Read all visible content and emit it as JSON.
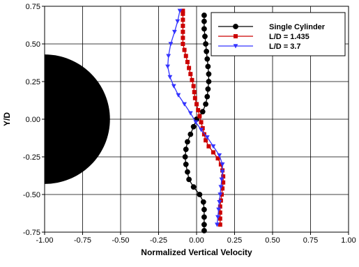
{
  "chart_data": {
    "type": "line",
    "title": "",
    "xlabel": "Normalized Vertical Velocity",
    "ylabel": "Y/D",
    "xlim": [
      -1.0,
      1.0
    ],
    "ylim": [
      -0.75,
      0.75
    ],
    "x_ticks": [
      "-1.00",
      "-0.75",
      "-0.50",
      "-0.25",
      "0.00",
      "0.25",
      "0.50",
      "0.75",
      "1.00"
    ],
    "y_ticks": [
      "0.75",
      "0.50",
      "0.25",
      "0.00",
      "-0.25",
      "-0.50",
      "-0.75"
    ],
    "grid": true,
    "legend_position": "top-right",
    "shape": {
      "type": "half-disk",
      "center": [
        -1.0,
        0.0
      ],
      "radius": 0.43,
      "color": "#000000"
    },
    "series": [
      {
        "name": "Single Cylinder",
        "color": "#000000",
        "marker": "circle",
        "points": [
          [
            0.05,
            0.69
          ],
          [
            0.05,
            0.65
          ],
          [
            0.05,
            0.6
          ],
          [
            0.055,
            0.55
          ],
          [
            0.06,
            0.5
          ],
          [
            0.065,
            0.45
          ],
          [
            0.07,
            0.4
          ],
          [
            0.075,
            0.35
          ],
          [
            0.08,
            0.3
          ],
          [
            0.08,
            0.25
          ],
          [
            0.075,
            0.2
          ],
          [
            0.07,
            0.15
          ],
          [
            0.06,
            0.1
          ],
          [
            0.04,
            0.05
          ],
          [
            0.0,
            0.0
          ],
          [
            -0.02,
            -0.05
          ],
          [
            -0.04,
            -0.1
          ],
          [
            -0.06,
            -0.15
          ],
          [
            -0.07,
            -0.2
          ],
          [
            -0.075,
            -0.25
          ],
          [
            -0.07,
            -0.3
          ],
          [
            -0.06,
            -0.35
          ],
          [
            -0.05,
            -0.4
          ],
          [
            -0.02,
            -0.45
          ],
          [
            0.02,
            -0.5
          ],
          [
            0.045,
            -0.55
          ],
          [
            0.05,
            -0.6
          ],
          [
            0.05,
            -0.65
          ],
          [
            0.05,
            -0.7
          ],
          [
            0.05,
            -0.74
          ]
        ]
      },
      {
        "name": "L/D = 1.435",
        "color": "#cc0000",
        "marker": "square",
        "points": [
          [
            -0.09,
            0.72
          ],
          [
            -0.09,
            0.7
          ],
          [
            -0.09,
            0.66
          ],
          [
            -0.09,
            0.62
          ],
          [
            -0.09,
            0.58
          ],
          [
            -0.09,
            0.54
          ],
          [
            -0.09,
            0.5
          ],
          [
            -0.08,
            0.46
          ],
          [
            -0.07,
            0.42
          ],
          [
            -0.06,
            0.38
          ],
          [
            -0.05,
            0.34
          ],
          [
            -0.04,
            0.3
          ],
          [
            -0.03,
            0.26
          ],
          [
            -0.02,
            0.22
          ],
          [
            -0.015,
            0.18
          ],
          [
            -0.01,
            0.14
          ],
          [
            0.0,
            0.1
          ],
          [
            0.01,
            0.06
          ],
          [
            0.02,
            0.02
          ],
          [
            0.03,
            -0.02
          ],
          [
            0.04,
            -0.06
          ],
          [
            0.05,
            -0.1
          ],
          [
            0.06,
            -0.14
          ],
          [
            0.08,
            -0.18
          ],
          [
            0.11,
            -0.22
          ],
          [
            0.14,
            -0.26
          ],
          [
            0.16,
            -0.3
          ],
          [
            0.17,
            -0.34
          ],
          [
            0.175,
            -0.38
          ],
          [
            0.175,
            -0.42
          ],
          [
            0.17,
            -0.46
          ],
          [
            0.165,
            -0.5
          ],
          [
            0.16,
            -0.54
          ],
          [
            0.155,
            -0.58
          ],
          [
            0.155,
            -0.62
          ],
          [
            0.155,
            -0.66
          ],
          [
            0.155,
            -0.7
          ]
        ]
      },
      {
        "name": "L/D = 3.7",
        "color": "#3333ff",
        "marker": "triangle-down",
        "points": [
          [
            -0.11,
            0.72
          ],
          [
            -0.125,
            0.65
          ],
          [
            -0.145,
            0.58
          ],
          [
            -0.17,
            0.5
          ],
          [
            -0.185,
            0.42
          ],
          [
            -0.19,
            0.35
          ],
          [
            -0.175,
            0.28
          ],
          [
            -0.15,
            0.22
          ],
          [
            -0.12,
            0.16
          ],
          [
            -0.08,
            0.1
          ],
          [
            -0.04,
            0.04
          ],
          [
            -0.005,
            -0.02
          ],
          [
            0.03,
            -0.07
          ],
          [
            0.07,
            -0.12
          ],
          [
            0.11,
            -0.18
          ],
          [
            0.15,
            -0.24
          ],
          [
            0.17,
            -0.3
          ],
          [
            0.17,
            -0.35
          ],
          [
            0.165,
            -0.4
          ],
          [
            0.16,
            -0.45
          ],
          [
            0.155,
            -0.5
          ],
          [
            0.15,
            -0.55
          ],
          [
            0.145,
            -0.6
          ],
          [
            0.14,
            -0.65
          ],
          [
            0.135,
            -0.7
          ]
        ]
      }
    ]
  }
}
